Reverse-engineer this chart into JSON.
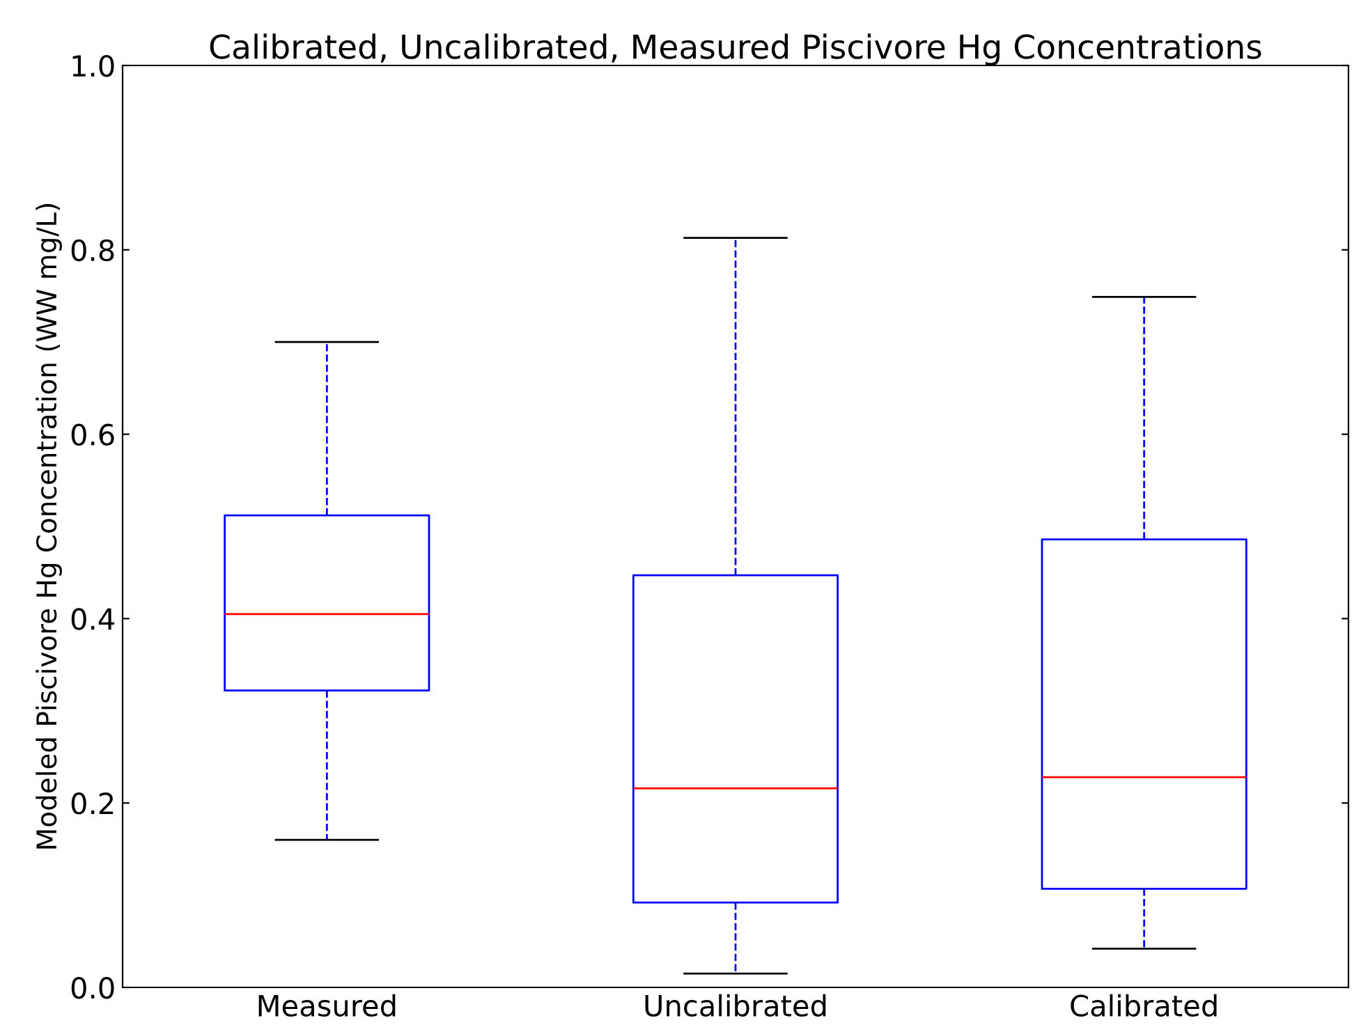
{
  "chart_data": {
    "type": "box",
    "title": "Calibrated, Uncalibrated, Measured Piscivore Hg Concentrations",
    "ylabel": "Modeled Piscivore Hg Concentration (WW mg/L)",
    "categories": [
      "Measured",
      "Uncalibrated",
      "Calibrated"
    ],
    "series": [
      {
        "color": "#0000ff",
        "boxes": [
          {
            "low": 0.16,
            "q1": 0.322,
            "median": 0.405,
            "q3": 0.512,
            "high": 0.7
          },
          {
            "low": 0.015,
            "q1": 0.092,
            "median": 0.216,
            "q3": 0.447,
            "high": 0.813
          },
          {
            "low": 0.042,
            "q1": 0.107,
            "median": 0.228,
            "q3": 0.486,
            "high": 0.749
          }
        ]
      }
    ],
    "line_style": "dashed",
    "ylim": [
      0,
      1.0
    ],
    "yticks": [
      {
        "value": 0,
        "label": "0.0"
      },
      {
        "value": 0.2,
        "label": "0.2"
      },
      {
        "value": 0.4,
        "label": "0.4"
      },
      {
        "value": 0.6,
        "label": "0.6"
      },
      {
        "value": 0.8,
        "label": "0.8"
      },
      {
        "value": 1.0,
        "label": "1.0"
      }
    ],
    "grid": false,
    "legend": false
  }
}
